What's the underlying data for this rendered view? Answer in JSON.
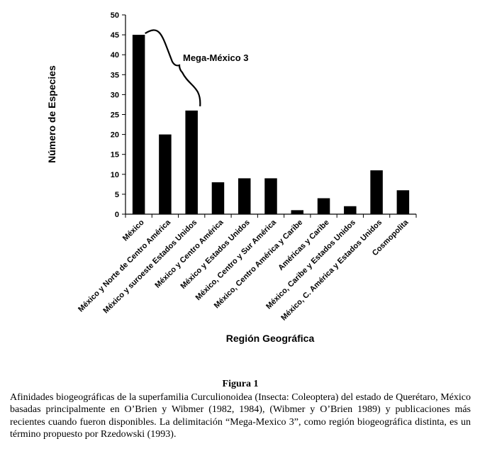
{
  "chart_data": {
    "type": "bar",
    "categories": [
      "México",
      "México y Norte de Centro América",
      "México y suroeste Estados Unidos",
      "México y Centro América",
      "México y Estados Unidos",
      "México, Centro y Sur América",
      "México, Centro América y Caribe",
      "Américas y Caribe",
      "México, Caribe y Estados Unidos",
      "México, C. América y Estados Unidos",
      "Cosmopolita"
    ],
    "values": [
      45,
      20,
      26,
      8,
      9,
      9,
      1,
      4,
      2,
      11,
      6
    ],
    "xlabel": "Región Geográfica",
    "ylabel": "Número de Especies",
    "ylim": [
      0,
      50
    ],
    "yticks": [
      0,
      5,
      10,
      15,
      20,
      25,
      30,
      35,
      40,
      45,
      50
    ],
    "annotation": "Mega-México 3",
    "grid": false,
    "bar_color": "#000000"
  },
  "caption": {
    "title": "Figura 1",
    "text": "Afinidades biogeográficas de la superfamilia Curculionoidea (Insecta: Coleoptera) del estado de Querétaro, México basadas principalmente en O’Brien y Wibmer (1982, 1984), (Wibmer y O’Brien 1989) y publicaciones más recientes cuando fueron disponibles. La delimitación “Mega-Mexico 3”, como región biogeográfica distinta, es un término propuesto por Rzedowski (1993)."
  }
}
